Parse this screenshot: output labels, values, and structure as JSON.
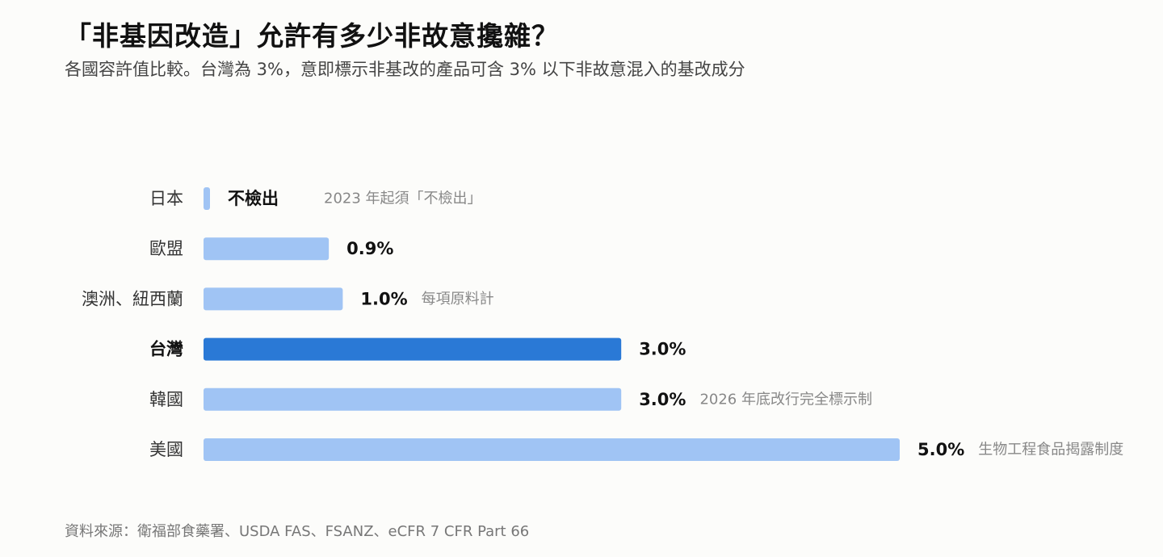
{
  "header": {
    "title": "「非基因改造」允許有多少非故意攙雜？",
    "subtitle": "各國容許值比較。台灣為 3%，意即標示非基改的產品可含 3% 以下非故意混入的基改成分"
  },
  "footer": {
    "source": "資料來源：衛福部食藥署、USDA FAS、FSANZ、eCFR 7 CFR Part 66"
  },
  "colors": {
    "bar": "#a0c4f4",
    "highlight": "#2a79d6"
  },
  "chart_data": {
    "type": "bar",
    "orientation": "horizontal",
    "categories": [
      "日本",
      "歐盟",
      "澳洲、紐西蘭",
      "台灣",
      "韓國",
      "美國"
    ],
    "values": [
      0,
      0.9,
      1.0,
      3.0,
      3.0,
      5.0
    ],
    "value_labels": [
      "不檢出",
      "0.9%",
      "1.0%",
      "3.0%",
      "3.0%",
      "5.0%"
    ],
    "annotations": [
      "2023 年起須「不檢出」",
      "",
      "每項原料計",
      "",
      "2026 年底改行完全標示制",
      "生物工程食品揭露制度"
    ],
    "highlight": "台灣",
    "xlim": [
      0,
      5.0
    ],
    "grid": false,
    "legend": false
  }
}
